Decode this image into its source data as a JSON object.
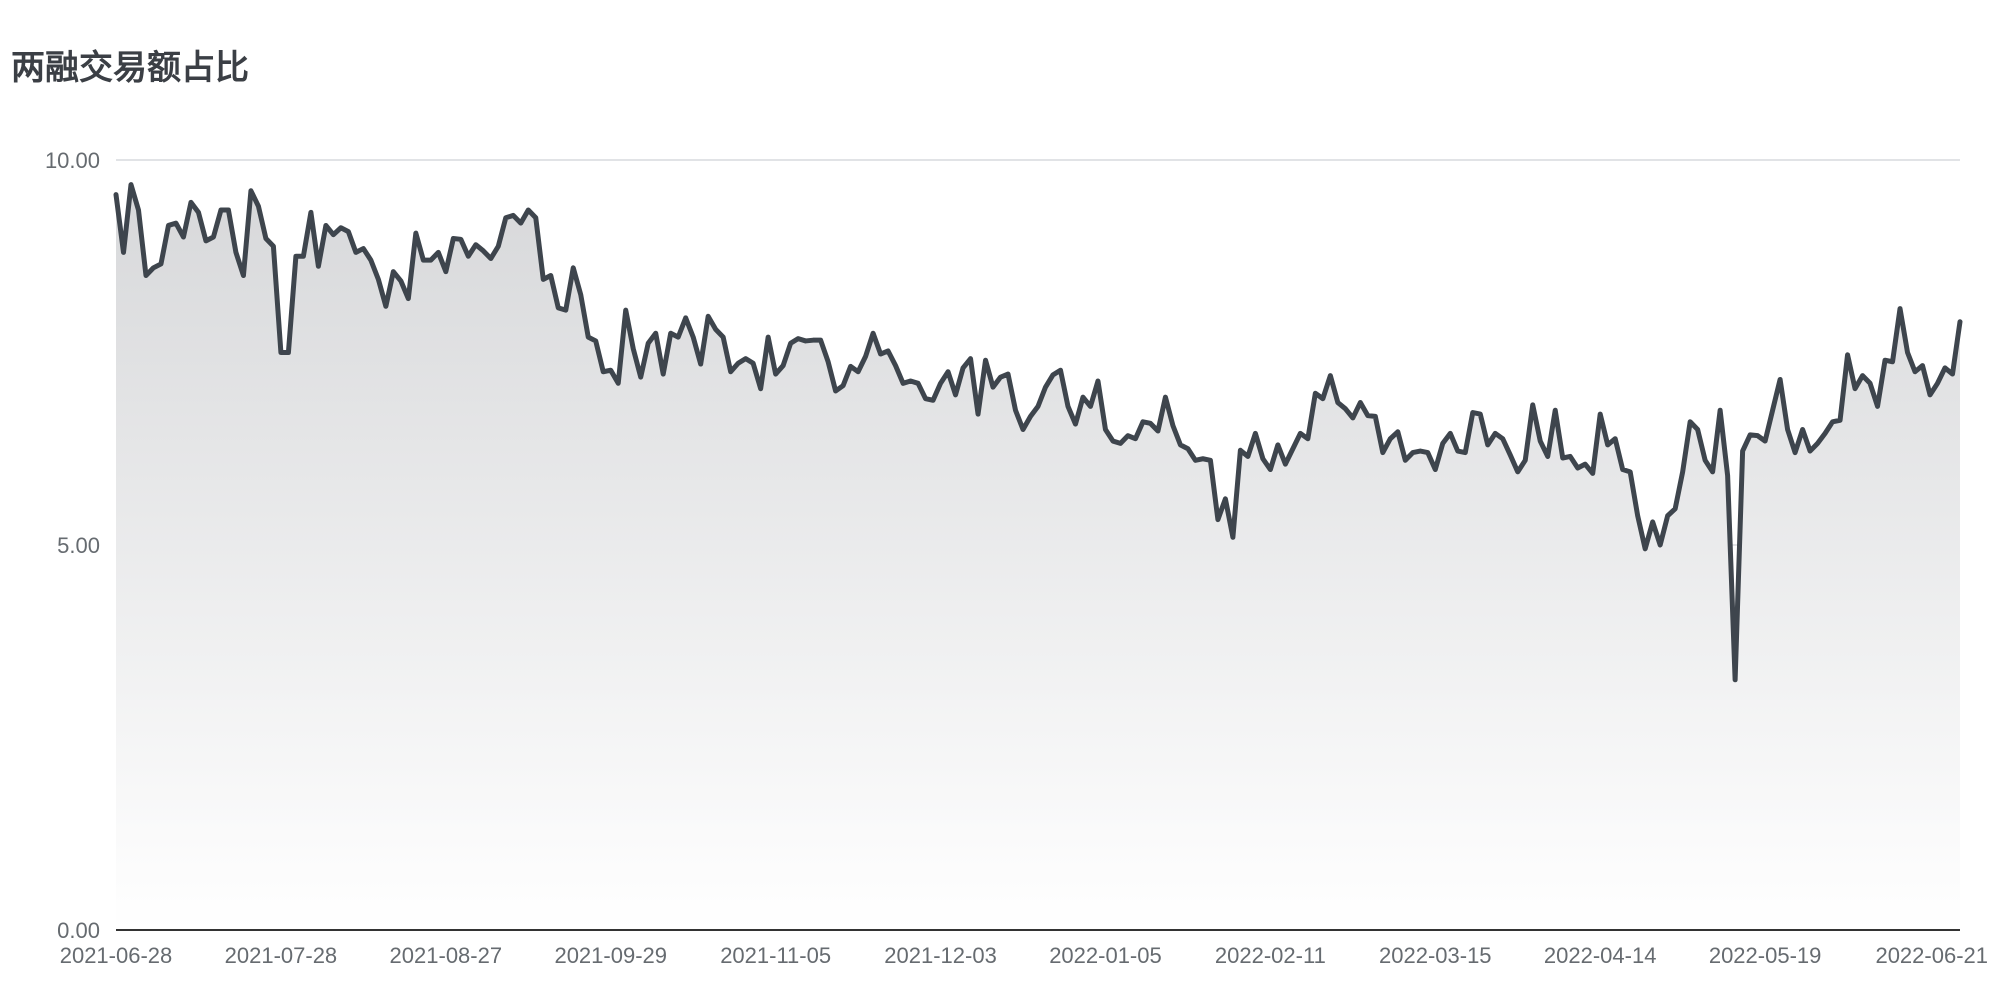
{
  "chart_data": {
    "type": "area",
    "title": "两融交易额占比",
    "xlabel": "",
    "ylabel": "",
    "ylim": [
      0,
      10
    ],
    "yticks": [
      0,
      5,
      10
    ],
    "ytick_labels": [
      "0.00",
      "5.00",
      "10.00"
    ],
    "grid": true,
    "legend": "none",
    "colors": {
      "line": "#3e454d",
      "fill_top": "#d7d8da",
      "fill_bottom": "#ffffff",
      "grid": "#e1e3e6",
      "axis": "#333333"
    },
    "xtick_labels": [
      "2021-06-28",
      "2021-07-28",
      "2021-08-27",
      "2021-09-29",
      "2021-11-05",
      "2021-12-03",
      "2022-01-05",
      "2022-02-11",
      "2022-03-15",
      "2022-04-14",
      "2022-05-19",
      "2022-06-21"
    ],
    "xtick_index": [
      0,
      22,
      44,
      66,
      88,
      110,
      132,
      154,
      176,
      198,
      220,
      242
    ],
    "series": [
      {
        "name": "",
        "values": [
          9.55,
          8.8,
          9.68,
          9.35,
          8.5,
          8.6,
          8.65,
          9.15,
          9.18,
          9.0,
          9.45,
          9.32,
          8.95,
          9.0,
          9.35,
          9.35,
          8.8,
          8.5,
          9.6,
          9.4,
          8.98,
          8.88,
          7.5,
          7.5,
          8.75,
          8.75,
          9.32,
          8.62,
          9.15,
          9.03,
          9.12,
          9.07,
          8.8,
          8.85,
          8.7,
          8.45,
          8.1,
          8.55,
          8.43,
          8.2,
          9.05,
          8.7,
          8.7,
          8.8,
          8.55,
          8.98,
          8.97,
          8.75,
          8.9,
          8.82,
          8.72,
          8.88,
          9.25,
          9.28,
          9.18,
          9.35,
          9.25,
          8.45,
          8.5,
          8.08,
          8.05,
          8.6,
          8.25,
          7.7,
          7.65,
          7.25,
          7.27,
          7.1,
          8.05,
          7.55,
          7.18,
          7.62,
          7.75,
          7.22,
          7.75,
          7.7,
          7.95,
          7.7,
          7.35,
          7.97,
          7.8,
          7.7,
          7.25,
          7.36,
          7.42,
          7.36,
          7.03,
          7.7,
          7.22,
          7.33,
          7.62,
          7.68,
          7.65,
          7.66,
          7.66,
          7.38,
          7.0,
          7.07,
          7.32,
          7.25,
          7.45,
          7.75,
          7.48,
          7.52,
          7.33,
          7.1,
          7.13,
          7.1,
          6.9,
          6.88,
          7.1,
          7.25,
          6.95,
          7.3,
          7.42,
          6.7,
          7.4,
          7.05,
          7.18,
          7.22,
          6.75,
          6.5,
          6.67,
          6.8,
          7.05,
          7.21,
          7.27,
          6.8,
          6.57,
          6.92,
          6.8,
          7.13,
          6.5,
          6.35,
          6.32,
          6.42,
          6.38,
          6.6,
          6.58,
          6.48,
          6.92,
          6.55,
          6.3,
          6.25,
          6.1,
          6.12,
          6.1,
          5.33,
          5.6,
          5.1,
          6.23,
          6.15,
          6.45,
          6.12,
          5.98,
          6.3,
          6.05,
          6.25,
          6.45,
          6.38,
          6.97,
          6.9,
          7.2,
          6.85,
          6.77,
          6.65,
          6.85,
          6.68,
          6.67,
          6.2,
          6.38,
          6.47,
          6.1,
          6.2,
          6.22,
          6.2,
          5.98,
          6.32,
          6.45,
          6.22,
          6.2,
          6.72,
          6.7,
          6.3,
          6.45,
          6.38,
          6.17,
          5.95,
          6.1,
          6.82,
          6.35,
          6.15,
          6.75,
          6.13,
          6.15,
          6.0,
          6.05,
          5.93,
          6.7,
          6.3,
          6.38,
          5.98,
          5.95,
          5.38,
          4.95,
          5.3,
          5.0,
          5.38,
          5.47,
          5.95,
          6.6,
          6.5,
          6.1,
          5.95,
          6.75,
          5.9,
          3.25,
          6.22,
          6.43,
          6.42,
          6.35,
          6.75,
          7.15,
          6.5,
          6.2,
          6.5,
          6.22,
          6.32,
          6.45,
          6.6,
          6.62,
          7.47,
          7.03,
          7.2,
          7.1,
          6.8,
          7.4,
          7.38,
          8.07,
          7.5,
          7.25,
          7.33,
          6.95,
          7.1,
          7.3,
          7.22,
          7.9
        ]
      }
    ]
  }
}
